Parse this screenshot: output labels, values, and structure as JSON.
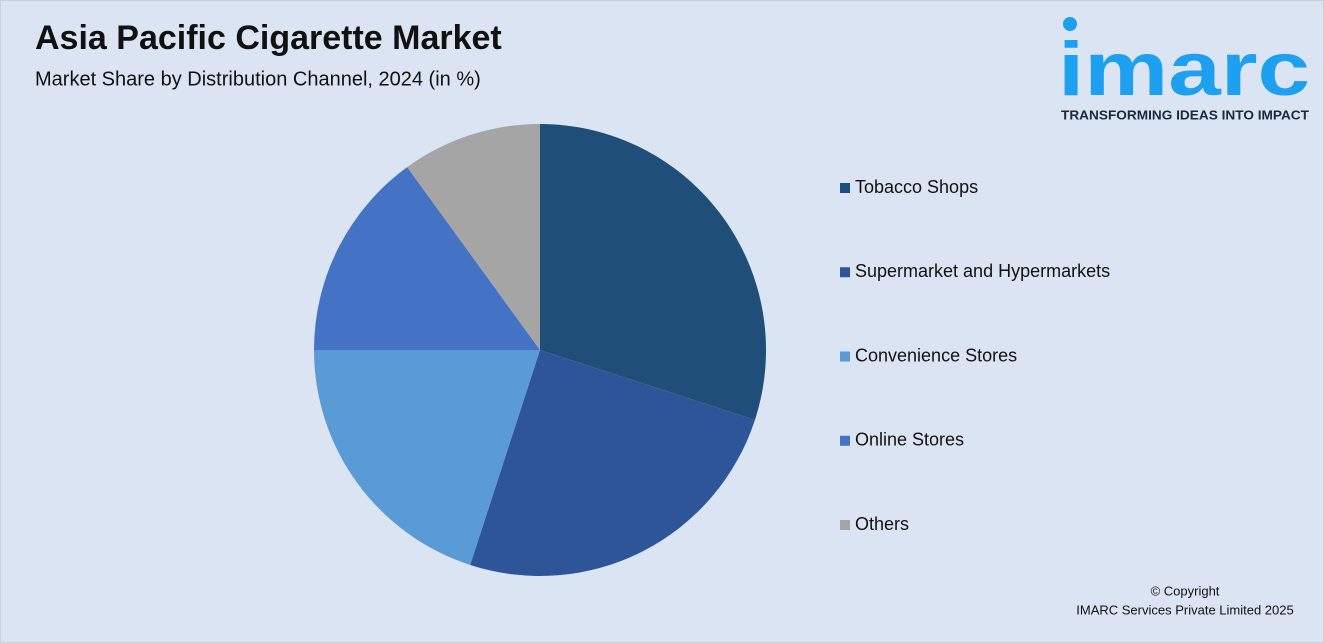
{
  "chart_data": {
    "type": "pie",
    "title": "Asia Pacific Cigarette Market",
    "subtitle": "Market Share by Distribution Channel, 2024 (in %)",
    "categories": [
      "Tobacco Shops",
      "Supermarket and Hypermarkets",
      "Convenience Stores",
      "Online Stores",
      "Others"
    ],
    "values": [
      30,
      25,
      20,
      15,
      10
    ],
    "colors": [
      "#1f4e79",
      "#2e5597",
      "#5b9bd5",
      "#4472c4",
      "#a5a5a5"
    ],
    "legend": "right"
  },
  "logo": {
    "name": "imarc",
    "tagline": "TRANSFORMING IDEAS INTO IMPACT"
  },
  "footer": {
    "copyright": "© Copyright",
    "owner": "IMARC Services Private Limited 2025"
  }
}
